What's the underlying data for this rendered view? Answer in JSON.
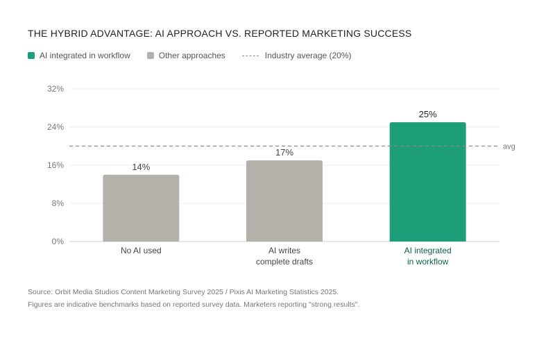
{
  "chart_data": {
    "type": "bar",
    "title": "THE HYBRID ADVANTAGE: AI APPROACH VS. REPORTED MARKETING SUCCESS",
    "categories": [
      [
        "No AI used"
      ],
      [
        "AI writes",
        "complete drafts"
      ],
      [
        "AI integrated",
        "in workflow"
      ]
    ],
    "values": [
      14,
      17,
      25
    ],
    "value_labels": [
      "14%",
      "17%",
      "25%"
    ],
    "highlight": [
      false,
      false,
      true
    ],
    "ylim": [
      0,
      32
    ],
    "yticks": [
      0,
      8,
      16,
      24,
      32
    ],
    "ytick_labels": [
      "0%",
      "8%",
      "16%",
      "24%",
      "32%"
    ],
    "reference_line": {
      "value": 20,
      "label": "avg"
    },
    "legend": [
      {
        "label": "AI integrated in workflow",
        "color": "#1e9e78",
        "kind": "box"
      },
      {
        "label": "Other approaches",
        "color": "#b3b1a9",
        "kind": "box"
      },
      {
        "label": "Industry average (20%)",
        "color": "#888888",
        "kind": "dash"
      }
    ],
    "colors": {
      "highlight": "#1e9e78",
      "other": "#b3b1a9",
      "highlight_text": "#0b5e45",
      "other_text": "#444444"
    }
  },
  "footer": {
    "source": "Source: Orbit Media Studios Content Marketing Survey 2025 / Pixis AI Marketing Statistics 2025.",
    "note": "Figures are indicative benchmarks based on reported survey data. Marketers reporting \"strong results\"."
  }
}
